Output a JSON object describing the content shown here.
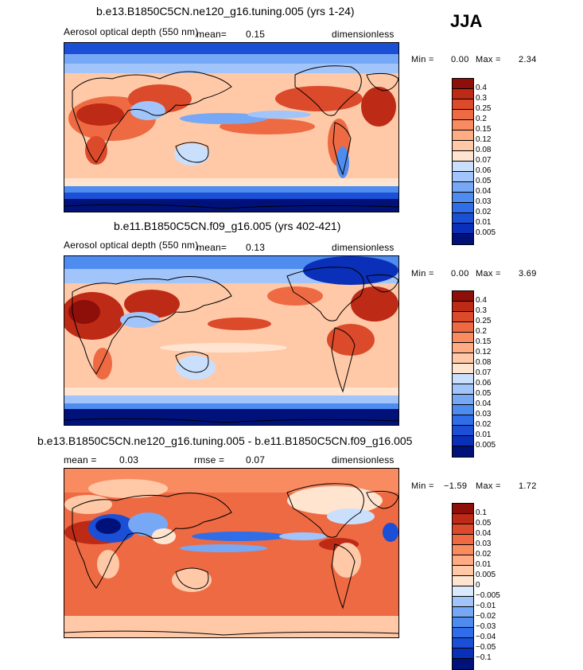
{
  "season": "JJA",
  "palette": {
    "abs": [
      "#00127a",
      "#0a2fb8",
      "#1a4fd6",
      "#2f6ee8",
      "#4f8cf0",
      "#77a8f5",
      "#a1c4fa",
      "#cadffc",
      "#ffe4d0",
      "#ffc9a8",
      "#ffab84",
      "#f98b61",
      "#ee6a43",
      "#db4a2a",
      "#bd2a16",
      "#8e0e0a"
    ],
    "diff": [
      "#00127a",
      "#0a2fb8",
      "#1a4fd6",
      "#2f6ee8",
      "#4f8cf0",
      "#77a8f5",
      "#a1c4fa",
      "#dbe9fd",
      "#ffe4d0",
      "#ffc9a8",
      "#ffab84",
      "#f98b61",
      "#ee6a43",
      "#db4a2a",
      "#bd2a16",
      "#8e0e0a"
    ]
  },
  "panels": [
    {
      "id": "p1",
      "title": "b.e13.B1850C5CN.ne120_g16.tuning.005 (yrs 1-24)",
      "subtitle_left": "Aerosol optical depth (550 nm)",
      "stat1_label": "mean=",
      "stat1_value": "0.15",
      "units": "dimensionless",
      "min_label": "Min =",
      "min_value": "0.00",
      "max_label": "Max =",
      "max_value": "2.34",
      "levels": [
        "0.4",
        "0.3",
        "0.25",
        "0.2",
        "0.15",
        "0.12",
        "0.08",
        "0.07",
        "0.06",
        "0.05",
        "0.04",
        "0.03",
        "0.02",
        "0.01",
        "0.005"
      ]
    },
    {
      "id": "p2",
      "title": "b.e11.B1850C5CN.f09_g16.005 (yrs 402-421)",
      "subtitle_left": "Aerosol optical depth (550 nm)",
      "stat1_label": "mean=",
      "stat1_value": "0.13",
      "units": "dimensionless",
      "min_label": "Min =",
      "min_value": "0.00",
      "max_label": "Max =",
      "max_value": "3.69",
      "levels": [
        "0.4",
        "0.3",
        "0.25",
        "0.2",
        "0.15",
        "0.12",
        "0.08",
        "0.07",
        "0.06",
        "0.05",
        "0.04",
        "0.03",
        "0.02",
        "0.01",
        "0.005"
      ]
    },
    {
      "id": "p3",
      "title": "b.e13.B1850C5CN.ne120_g16.tuning.005 - b.e11.B1850C5CN.f09_g16.005",
      "stat1_label": "mean =",
      "stat1_value": "0.03",
      "stat2_label": "rmse =",
      "stat2_value": "0.07",
      "units": "dimensionless",
      "min_label": "Min =",
      "min_value": "−1.59",
      "max_label": "Max =",
      "max_value": "1.72",
      "levels": [
        "0.1",
        "0.05",
        "0.04",
        "0.03",
        "0.02",
        "0.01",
        "0.005",
        "0",
        "−0.005",
        "−0.01",
        "−0.02",
        "−0.03",
        "−0.04",
        "−0.05",
        "−0.1"
      ]
    }
  ],
  "chart_data": [
    {
      "type": "heatmap",
      "title": "b.e13.B1850C5CN.ne120_g16.tuning.005 (yrs 1-24)",
      "variable": "Aerosol optical depth (550 nm)",
      "units": "dimensionless",
      "mean": 0.15,
      "min": 0.0,
      "max": 2.34,
      "contour_levels": [
        0.005,
        0.01,
        0.02,
        0.03,
        0.04,
        0.05,
        0.06,
        0.07,
        0.08,
        0.12,
        0.15,
        0.2,
        0.25,
        0.3,
        0.4
      ]
    },
    {
      "type": "heatmap",
      "title": "b.e11.B1850C5CN.f09_g16.005 (yrs 402-421)",
      "variable": "Aerosol optical depth (550 nm)",
      "units": "dimensionless",
      "mean": 0.13,
      "min": 0.0,
      "max": 3.69,
      "contour_levels": [
        0.005,
        0.01,
        0.02,
        0.03,
        0.04,
        0.05,
        0.06,
        0.07,
        0.08,
        0.12,
        0.15,
        0.2,
        0.25,
        0.3,
        0.4
      ]
    },
    {
      "type": "heatmap",
      "title": "b.e13.B1850C5CN.ne120_g16.tuning.005 - b.e11.B1850C5CN.f09_g16.005",
      "units": "dimensionless",
      "mean": 0.03,
      "rmse": 0.07,
      "min": -1.59,
      "max": 1.72,
      "contour_levels": [
        -0.1,
        -0.05,
        -0.04,
        -0.03,
        -0.02,
        -0.01,
        -0.005,
        0,
        0.005,
        0.01,
        0.02,
        0.03,
        0.04,
        0.05,
        0.1
      ]
    }
  ]
}
